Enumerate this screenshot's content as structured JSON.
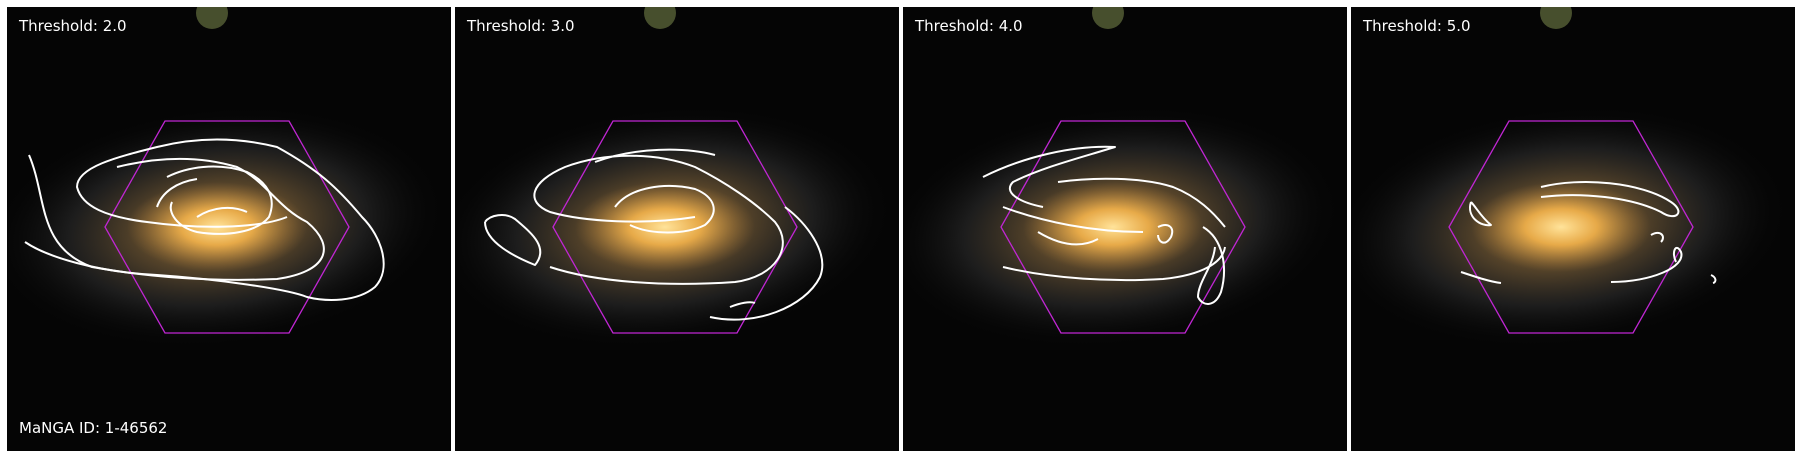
{
  "panels": [
    {
      "threshold_label": "Threshold: 2.0"
    },
    {
      "threshold_label": "Threshold: 3.0"
    },
    {
      "threshold_label": "Threshold: 4.0"
    },
    {
      "threshold_label": "Threshold: 5.0"
    }
  ],
  "galaxy_id_label": "MaNGA ID: 1-46562",
  "colors": {
    "sky": "#050505",
    "core": "#f7c35a",
    "disk": "#b98f4a",
    "contour": "#ffffff",
    "ifu_hexagon": "#c026d3"
  }
}
